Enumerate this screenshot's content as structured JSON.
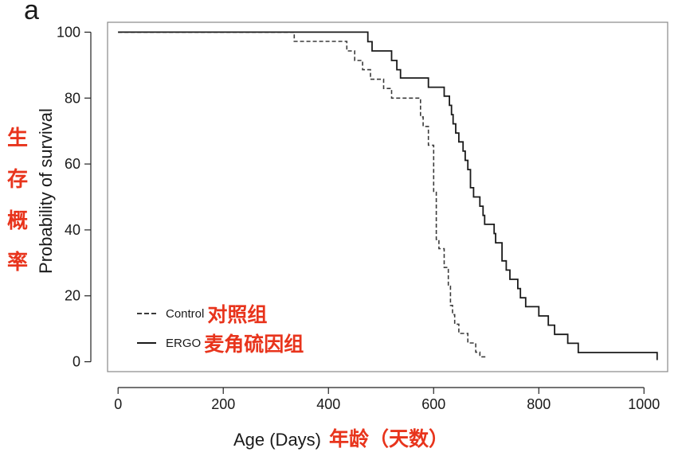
{
  "panel_label": "a",
  "chart_data": {
    "type": "line",
    "xlabel": "Age (Days)",
    "xlabel_cn": "年龄（天数）",
    "ylabel": "Probability of survival",
    "ylabel_cn": "生存概率",
    "xlim": [
      -20,
      1045
    ],
    "ylim": [
      -3,
      103
    ],
    "x_ticks": [
      0,
      200,
      400,
      600,
      800,
      1000
    ],
    "y_ticks": [
      0,
      20,
      40,
      60,
      80,
      100
    ],
    "grid": false,
    "legend_position": "bottom-left",
    "series": [
      {
        "name": "Control",
        "name_cn": "对照组",
        "style": "dashed",
        "color": "#3a3a3a",
        "x": [
          0,
          335,
          335,
          435,
          435,
          450,
          450,
          465,
          465,
          480,
          480,
          505,
          505,
          520,
          520,
          575,
          575,
          580,
          580,
          590,
          590,
          600,
          600,
          605,
          605,
          610,
          610,
          615,
          615,
          620,
          620,
          628,
          628,
          632,
          632,
          636,
          636,
          640,
          640,
          648,
          648,
          655,
          655,
          665,
          665,
          680,
          680,
          688,
          688,
          700,
          700
        ],
        "y": [
          100,
          100,
          97.2,
          97.2,
          94.3,
          94.3,
          91.4,
          91.4,
          88.6,
          88.6,
          85.7,
          85.7,
          82.9,
          82.9,
          80,
          80,
          74.3,
          74.3,
          71.4,
          71.4,
          65.7,
          65.7,
          51.4,
          51.4,
          37.1,
          37.1,
          34.3,
          34.3,
          34.3,
          34.3,
          28.6,
          28.6,
          22.9,
          22.9,
          17.1,
          17.1,
          14.3,
          14.3,
          11.4,
          11.4,
          8.6,
          8.6,
          8.6,
          8.6,
          5.7,
          5.7,
          2.9,
          2.9,
          1.5,
          1.5,
          1.5
        ]
      },
      {
        "name": "ERGO",
        "name_cn": "麦角硫因组",
        "style": "solid",
        "color": "#1a1a1a",
        "x": [
          0,
          475,
          475,
          483,
          483,
          488,
          488,
          520,
          520,
          530,
          530,
          537,
          537,
          560,
          560,
          590,
          590,
          600,
          600,
          620,
          620,
          630,
          630,
          634,
          634,
          637,
          637,
          642,
          642,
          648,
          648,
          656,
          656,
          660,
          660,
          665,
          665,
          670,
          670,
          676,
          676,
          688,
          688,
          694,
          694,
          697,
          697,
          715,
          715,
          718,
          718,
          730,
          730,
          738,
          738,
          745,
          745,
          760,
          760,
          765,
          765,
          770,
          770,
          775,
          775,
          786,
          786,
          800,
          800,
          818,
          818,
          830,
          830,
          845,
          845,
          855,
          855,
          867,
          867,
          875,
          875,
          930,
          930,
          1025,
          1025
        ],
        "y": [
          100,
          100,
          97.1,
          97.1,
          94.3,
          94.3,
          94.3,
          94.3,
          91.4,
          91.4,
          88.6,
          88.6,
          86.1,
          86.1,
          86.1,
          86.1,
          83.3,
          83.3,
          83.3,
          83.3,
          80.6,
          80.6,
          77.8,
          77.8,
          75,
          75,
          72.2,
          72.2,
          69.4,
          69.4,
          66.7,
          66.7,
          63.9,
          63.9,
          61.1,
          61.1,
          58.3,
          58.3,
          52.8,
          52.8,
          50,
          50,
          47.2,
          47.2,
          44.4,
          44.4,
          41.7,
          41.7,
          38.9,
          38.9,
          36.1,
          36.1,
          30.6,
          30.6,
          27.8,
          27.8,
          25,
          25,
          22.2,
          22.2,
          19.4,
          19.4,
          19.4,
          19.4,
          16.7,
          16.7,
          16.7,
          16.7,
          13.9,
          13.9,
          11.1,
          11.1,
          8.3,
          8.3,
          8.3,
          8.3,
          5.6,
          5.6,
          5.6,
          5.6,
          2.8,
          2.8,
          2.8,
          2.8,
          0.5
        ]
      }
    ]
  }
}
